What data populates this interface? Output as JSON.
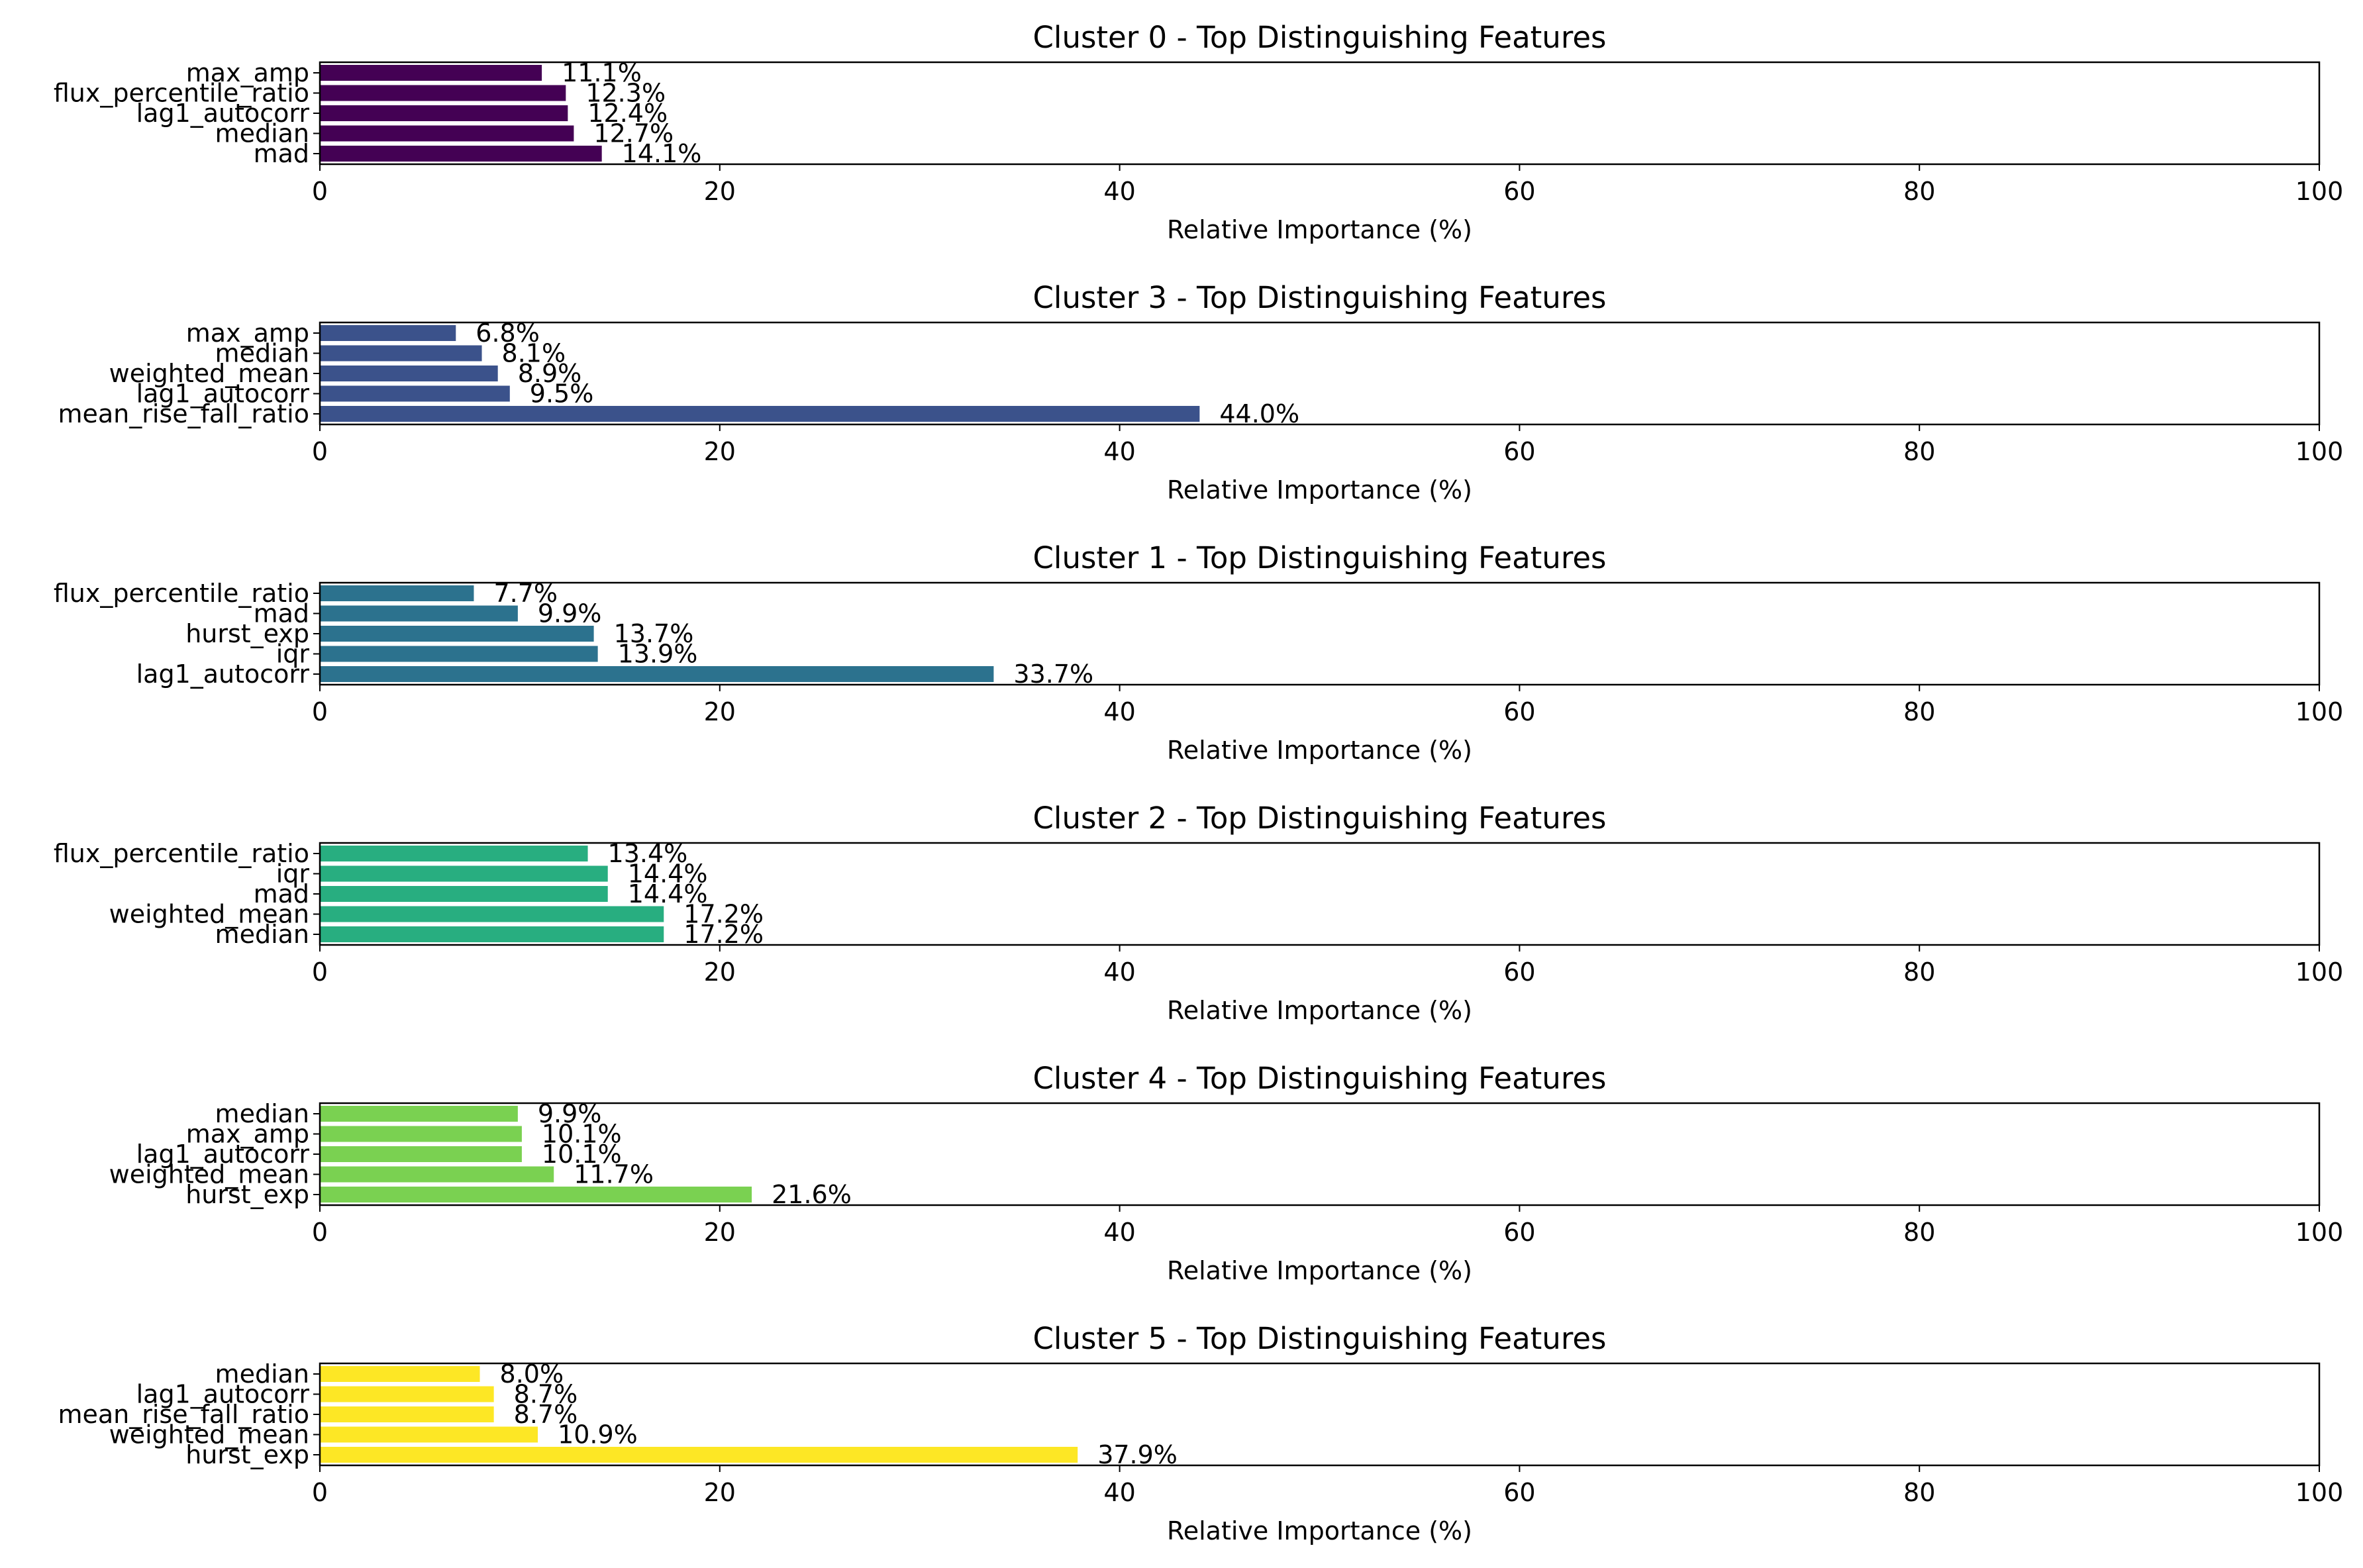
{
  "chart_data": [
    {
      "type": "bar",
      "orientation": "horizontal",
      "title": "Cluster 0 - Top Distinguishing Features",
      "xlabel": "Relative Importance (%)",
      "ylabel": "",
      "xlim": [
        0,
        100
      ],
      "xticks": [
        "0",
        "20",
        "40",
        "60",
        "80",
        "100"
      ],
      "color": "#440154",
      "categories": [
        "max_amp",
        "flux_percentile_ratio",
        "lag1_autocorr",
        "median",
        "mad"
      ],
      "values": [
        11.1,
        12.3,
        12.4,
        12.7,
        14.1
      ],
      "value_labels": [
        "11.1%",
        "12.3%",
        "12.4%",
        "12.7%",
        "14.1%"
      ]
    },
    {
      "type": "bar",
      "orientation": "horizontal",
      "title": "Cluster 3 - Top Distinguishing Features",
      "xlabel": "Relative Importance (%)",
      "ylabel": "",
      "xlim": [
        0,
        100
      ],
      "xticks": [
        "0",
        "20",
        "40",
        "60",
        "80",
        "100"
      ],
      "color": "#3b528b",
      "categories": [
        "max_amp",
        "median",
        "weighted_mean",
        "lag1_autocorr",
        "mean_rise_fall_ratio"
      ],
      "values": [
        6.8,
        8.1,
        8.9,
        9.5,
        44.0
      ],
      "value_labels": [
        "6.8%",
        "8.1%",
        "8.9%",
        "9.5%",
        "44.0%"
      ]
    },
    {
      "type": "bar",
      "orientation": "horizontal",
      "title": "Cluster 1 - Top Distinguishing Features",
      "xlabel": "Relative Importance (%)",
      "ylabel": "",
      "xlim": [
        0,
        100
      ],
      "xticks": [
        "0",
        "20",
        "40",
        "60",
        "80",
        "100"
      ],
      "color": "#2c728e",
      "categories": [
        "flux_percentile_ratio",
        "mad",
        "hurst_exp",
        "iqr",
        "lag1_autocorr"
      ],
      "values": [
        7.7,
        9.9,
        13.7,
        13.9,
        33.7
      ],
      "value_labels": [
        "7.7%",
        "9.9%",
        "13.7%",
        "13.9%",
        "33.7%"
      ]
    },
    {
      "type": "bar",
      "orientation": "horizontal",
      "title": "Cluster 2 - Top Distinguishing Features",
      "xlabel": "Relative Importance (%)",
      "ylabel": "",
      "xlim": [
        0,
        100
      ],
      "xticks": [
        "0",
        "20",
        "40",
        "60",
        "80",
        "100"
      ],
      "color": "#28ae80",
      "categories": [
        "flux_percentile_ratio",
        "iqr",
        "mad",
        "weighted_mean",
        "median"
      ],
      "values": [
        13.4,
        14.4,
        14.4,
        17.2,
        17.2
      ],
      "value_labels": [
        "13.4%",
        "14.4%",
        "14.4%",
        "17.2%",
        "17.2%"
      ]
    },
    {
      "type": "bar",
      "orientation": "horizontal",
      "title": "Cluster 4 - Top Distinguishing Features",
      "xlabel": "Relative Importance (%)",
      "ylabel": "",
      "xlim": [
        0,
        100
      ],
      "xticks": [
        "0",
        "20",
        "40",
        "60",
        "80",
        "100"
      ],
      "color": "#7ad151",
      "categories": [
        "median",
        "max_amp",
        "lag1_autocorr",
        "weighted_mean",
        "hurst_exp"
      ],
      "values": [
        9.9,
        10.1,
        10.1,
        11.7,
        21.6
      ],
      "value_labels": [
        "9.9%",
        "10.1%",
        "10.1%",
        "11.7%",
        "21.6%"
      ]
    },
    {
      "type": "bar",
      "orientation": "horizontal",
      "title": "Cluster 5 - Top Distinguishing Features",
      "xlabel": "Relative Importance (%)",
      "ylabel": "",
      "xlim": [
        0,
        100
      ],
      "xticks": [
        "0",
        "20",
        "40",
        "60",
        "80",
        "100"
      ],
      "color": "#fde725",
      "categories": [
        "median",
        "lag1_autocorr",
        "mean_rise_fall_ratio",
        "weighted_mean",
        "hurst_exp"
      ],
      "values": [
        8.0,
        8.7,
        8.7,
        10.9,
        37.9
      ],
      "value_labels": [
        "8.0%",
        "8.7%",
        "8.7%",
        "10.9%",
        "37.9%"
      ]
    }
  ]
}
